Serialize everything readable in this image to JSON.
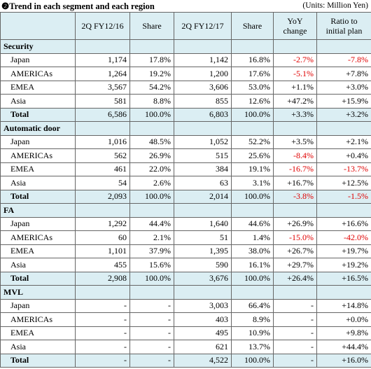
{
  "header": {
    "title": "❷Trend in each segment and each region",
    "units": "(Units: Million Yen)"
  },
  "table": {
    "columns": [
      "2Q FY12/16",
      "Share",
      "2Q FY12/17",
      "Share",
      "YoY change",
      "Ratio to initial plan"
    ],
    "sections": [
      {
        "name": "Security",
        "rows": [
          [
            "Japan",
            "1,174",
            "17.8%",
            "1,142",
            "16.8%",
            "-2.7%",
            "-7.8%"
          ],
          [
            "AMERICAs",
            "1,264",
            "19.2%",
            "1,200",
            "17.6%",
            "-5.1%",
            "+7.8%"
          ],
          [
            "EMEA",
            "3,567",
            "54.2%",
            "3,606",
            "53.0%",
            "+1.1%",
            "+3.0%"
          ],
          [
            "Asia",
            "581",
            "8.8%",
            "855",
            "12.6%",
            "+47.2%",
            "+15.9%"
          ]
        ],
        "total": [
          "Total",
          "6,586",
          "100.0%",
          "6,803",
          "100.0%",
          "+3.3%",
          "+3.2%"
        ]
      },
      {
        "name": "Automatic door",
        "rows": [
          [
            "Japan",
            "1,016",
            "48.5%",
            "1,052",
            "52.2%",
            "+3.5%",
            "+2.1%"
          ],
          [
            "AMERICAs",
            "562",
            "26.9%",
            "515",
            "25.6%",
            "-8.4%",
            "+0.4%"
          ],
          [
            "EMEA",
            "461",
            "22.0%",
            "384",
            "19.1%",
            "-16.7%",
            "-13.7%"
          ],
          [
            "Asia",
            "54",
            "2.6%",
            "63",
            "3.1%",
            "+16.7%",
            "+12.5%"
          ]
        ],
        "total": [
          "Total",
          "2,093",
          "100.0%",
          "2,014",
          "100.0%",
          "-3.8%",
          "-1.5%"
        ]
      },
      {
        "name": "FA",
        "rows": [
          [
            "Japan",
            "1,292",
            "44.4%",
            "1,640",
            "44.6%",
            "+26.9%",
            "+16.6%"
          ],
          [
            "AMERICAs",
            "60",
            "2.1%",
            "51",
            "1.4%",
            "-15.0%",
            "-42.0%"
          ],
          [
            "EMEA",
            "1,101",
            "37.9%",
            "1,395",
            "38.0%",
            "+26.7%",
            "+19.7%"
          ],
          [
            "Asia",
            "455",
            "15.6%",
            "590",
            "16.1%",
            "+29.7%",
            "+19.2%"
          ]
        ],
        "total": [
          "Total",
          "2,908",
          "100.0%",
          "3,676",
          "100.0%",
          "+26.4%",
          "+16.5%"
        ]
      },
      {
        "name": "MVL",
        "rows": [
          [
            "Japan",
            "-",
            "-",
            "3,003",
            "66.4%",
            "-",
            "+14.8%"
          ],
          [
            "AMERICAs",
            "-",
            "-",
            "403",
            "8.9%",
            "-",
            "+0.0%"
          ],
          [
            "EMEA",
            "-",
            "-",
            "495",
            "10.9%",
            "-",
            "+9.8%"
          ],
          [
            "Asia",
            "-",
            "-",
            "621",
            "13.7%",
            "-",
            "+44.4%"
          ]
        ],
        "total": [
          "Total",
          "-",
          "-",
          "4,522",
          "100.0%",
          "-",
          "+16.0%"
        ]
      }
    ]
  }
}
